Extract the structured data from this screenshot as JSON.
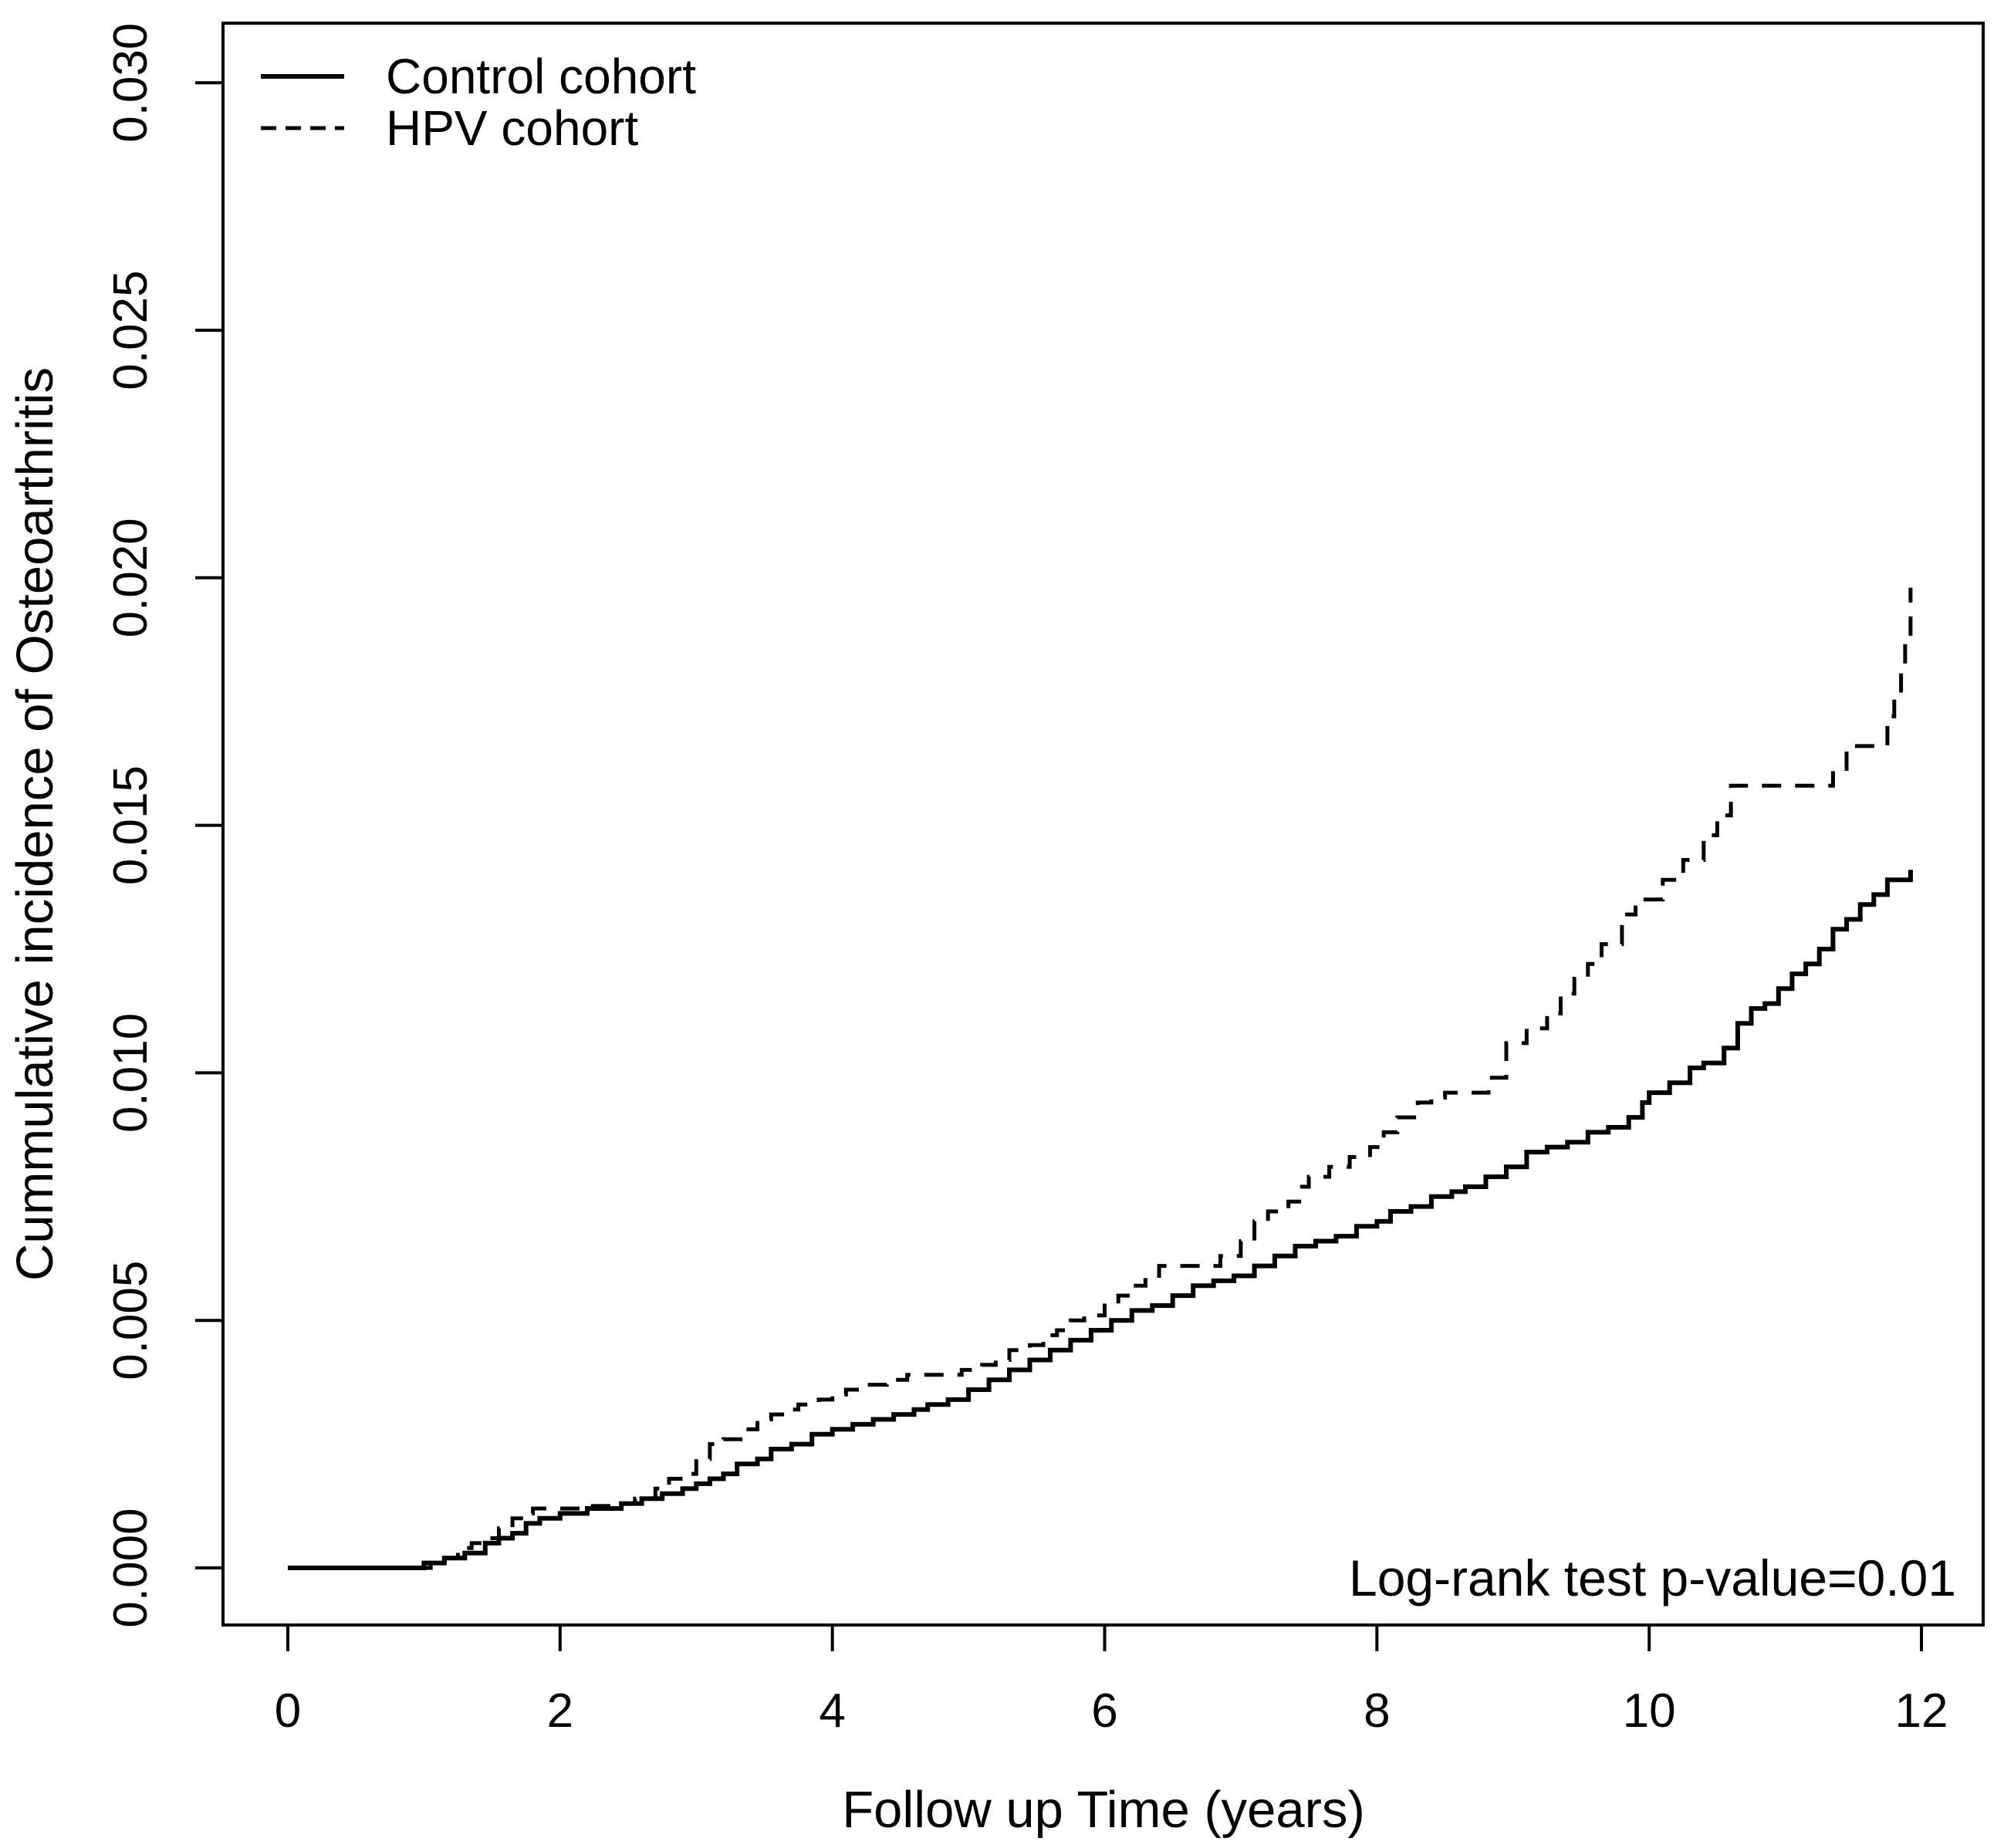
{
  "figure": {
    "legend": [
      {
        "label": "Control cohort",
        "style": "solid"
      },
      {
        "label": "HPV cohort",
        "style": "dashed"
      }
    ],
    "annotation": "Log-rank test p-value=0.01",
    "x_axis": {
      "title": "Follow up Time (years)",
      "tick_labels": [
        "0",
        "2",
        "4",
        "6",
        "8",
        "10",
        "12"
      ]
    },
    "y_axis": {
      "title": "Cummulative incidence of Osteoarthritis",
      "tick_labels": [
        "0.000",
        "0.005",
        "0.010",
        "0.015",
        "0.020",
        "0.025",
        "0.030"
      ]
    }
  },
  "chart_data": {
    "type": "line",
    "subtype": "step-cumulative-incidence",
    "title": "",
    "xlabel": "Follow up Time (years)",
    "ylabel": "Cummulative incidence of Osteoarthritis",
    "xlim": [
      0,
      12
    ],
    "ylim": [
      0,
      0.03
    ],
    "x_ticks": [
      0,
      2,
      4,
      6,
      8,
      10,
      12
    ],
    "y_ticks": [
      0.0,
      0.005,
      0.01,
      0.015,
      0.02,
      0.025,
      0.03
    ],
    "grid": false,
    "legend_position": "top-left",
    "annotation": "Log-rank test p-value=0.01",
    "series": [
      {
        "name": "Control cohort",
        "line_style": "solid",
        "color": "#000000",
        "points": [
          [
            0,
            0
          ],
          [
            1.0,
            0.0001
          ],
          [
            1.15,
            0.0002
          ],
          [
            1.3,
            0.0003
          ],
          [
            1.45,
            0.0005
          ],
          [
            1.55,
            0.0006
          ],
          [
            1.65,
            0.0007
          ],
          [
            1.75,
            0.0009
          ],
          [
            1.85,
            0.001
          ],
          [
            2.0,
            0.0011
          ],
          [
            2.2,
            0.0012
          ],
          [
            2.45,
            0.0013
          ],
          [
            2.6,
            0.0014
          ],
          [
            2.75,
            0.0015
          ],
          [
            2.9,
            0.0016
          ],
          [
            3.0,
            0.0017
          ],
          [
            3.1,
            0.0018
          ],
          [
            3.2,
            0.0019
          ],
          [
            3.3,
            0.0021
          ],
          [
            3.45,
            0.0022
          ],
          [
            3.55,
            0.0024
          ],
          [
            3.7,
            0.0025
          ],
          [
            3.85,
            0.0027
          ],
          [
            4.0,
            0.0028
          ],
          [
            4.15,
            0.0029
          ],
          [
            4.3,
            0.003
          ],
          [
            4.45,
            0.0031
          ],
          [
            4.6,
            0.0032
          ],
          [
            4.7,
            0.0033
          ],
          [
            4.85,
            0.0034
          ],
          [
            5.0,
            0.0036
          ],
          [
            5.15,
            0.0038
          ],
          [
            5.3,
            0.004
          ],
          [
            5.45,
            0.0042
          ],
          [
            5.6,
            0.0044
          ],
          [
            5.75,
            0.0046
          ],
          [
            5.9,
            0.0048
          ],
          [
            6.05,
            0.005
          ],
          [
            6.2,
            0.0052
          ],
          [
            6.35,
            0.0053
          ],
          [
            6.5,
            0.0055
          ],
          [
            6.65,
            0.0057
          ],
          [
            6.8,
            0.0058
          ],
          [
            6.95,
            0.0059
          ],
          [
            7.1,
            0.0061
          ],
          [
            7.25,
            0.0063
          ],
          [
            7.4,
            0.0065
          ],
          [
            7.55,
            0.0066
          ],
          [
            7.7,
            0.0067
          ],
          [
            7.85,
            0.0069
          ],
          [
            8.0,
            0.007
          ],
          [
            8.1,
            0.0072
          ],
          [
            8.25,
            0.0073
          ],
          [
            8.4,
            0.0075
          ],
          [
            8.55,
            0.0076
          ],
          [
            8.65,
            0.0077
          ],
          [
            8.8,
            0.0079
          ],
          [
            8.95,
            0.0081
          ],
          [
            9.1,
            0.0084
          ],
          [
            9.25,
            0.0085
          ],
          [
            9.4,
            0.0086
          ],
          [
            9.55,
            0.0088
          ],
          [
            9.7,
            0.0089
          ],
          [
            9.85,
            0.0091
          ],
          [
            9.95,
            0.0094
          ],
          [
            10.0,
            0.0096
          ],
          [
            10.15,
            0.0098
          ],
          [
            10.3,
            0.0101
          ],
          [
            10.4,
            0.0102
          ],
          [
            10.55,
            0.0105
          ],
          [
            10.65,
            0.011
          ],
          [
            10.75,
            0.0113
          ],
          [
            10.85,
            0.0114
          ],
          [
            10.95,
            0.0117
          ],
          [
            11.05,
            0.012
          ],
          [
            11.15,
            0.0122
          ],
          [
            11.25,
            0.0125
          ],
          [
            11.35,
            0.0129
          ],
          [
            11.45,
            0.0131
          ],
          [
            11.55,
            0.0134
          ],
          [
            11.65,
            0.0136
          ],
          [
            11.75,
            0.0139
          ],
          [
            11.92,
            0.0141
          ]
        ]
      },
      {
        "name": "HPV cohort",
        "line_style": "dashed",
        "color": "#000000",
        "points": [
          [
            0,
            0
          ],
          [
            1.05,
            0.0001
          ],
          [
            1.15,
            0.0002
          ],
          [
            1.25,
            0.0004
          ],
          [
            1.35,
            0.0005
          ],
          [
            1.45,
            0.0006
          ],
          [
            1.55,
            0.0008
          ],
          [
            1.65,
            0.001
          ],
          [
            1.75,
            0.0011
          ],
          [
            1.8,
            0.0012
          ],
          [
            2.2,
            0.00125
          ],
          [
            2.4,
            0.0013
          ],
          [
            2.55,
            0.0014
          ],
          [
            2.7,
            0.0016
          ],
          [
            2.8,
            0.0018
          ],
          [
            2.9,
            0.0019
          ],
          [
            3.0,
            0.0022
          ],
          [
            3.1,
            0.0025
          ],
          [
            3.2,
            0.0026
          ],
          [
            3.35,
            0.0028
          ],
          [
            3.45,
            0.003
          ],
          [
            3.55,
            0.0031
          ],
          [
            3.65,
            0.0032
          ],
          [
            3.75,
            0.0033
          ],
          [
            3.9,
            0.0034
          ],
          [
            4.0,
            0.0035
          ],
          [
            4.1,
            0.0036
          ],
          [
            4.25,
            0.0037
          ],
          [
            4.4,
            0.0038
          ],
          [
            4.55,
            0.0039
          ],
          [
            4.95,
            0.004
          ],
          [
            5.1,
            0.0041
          ],
          [
            5.2,
            0.0042
          ],
          [
            5.3,
            0.0044
          ],
          [
            5.45,
            0.0045
          ],
          [
            5.55,
            0.0047
          ],
          [
            5.65,
            0.0048
          ],
          [
            5.75,
            0.005
          ],
          [
            5.85,
            0.0051
          ],
          [
            6.0,
            0.0053
          ],
          [
            6.1,
            0.0055
          ],
          [
            6.2,
            0.0057
          ],
          [
            6.3,
            0.0059
          ],
          [
            6.4,
            0.0061
          ],
          [
            6.85,
            0.0063
          ],
          [
            7.0,
            0.0066
          ],
          [
            7.1,
            0.007
          ],
          [
            7.2,
            0.0072
          ],
          [
            7.35,
            0.0074
          ],
          [
            7.45,
            0.0077
          ],
          [
            7.5,
            0.0079
          ],
          [
            7.65,
            0.0081
          ],
          [
            7.8,
            0.0083
          ],
          [
            7.95,
            0.0085
          ],
          [
            8.05,
            0.0088
          ],
          [
            8.15,
            0.0091
          ],
          [
            8.3,
            0.0094
          ],
          [
            8.4,
            0.0095
          ],
          [
            8.5,
            0.0096
          ],
          [
            8.82,
            0.0099
          ],
          [
            8.95,
            0.0106
          ],
          [
            9.1,
            0.0109
          ],
          [
            9.25,
            0.0112
          ],
          [
            9.35,
            0.0116
          ],
          [
            9.45,
            0.0119
          ],
          [
            9.55,
            0.0122
          ],
          [
            9.65,
            0.0126
          ],
          [
            9.8,
            0.0132
          ],
          [
            9.9,
            0.0135
          ],
          [
            10.1,
            0.0139
          ],
          [
            10.25,
            0.0143
          ],
          [
            10.4,
            0.0148
          ],
          [
            10.5,
            0.0152
          ],
          [
            10.6,
            0.0158
          ],
          [
            11.35,
            0.0161
          ],
          [
            11.45,
            0.0166
          ],
          [
            11.75,
            0.0172
          ],
          [
            11.8,
            0.0176
          ],
          [
            11.85,
            0.0181
          ],
          [
            11.88,
            0.0187
          ],
          [
            11.92,
            0.0198
          ]
        ]
      }
    ]
  }
}
